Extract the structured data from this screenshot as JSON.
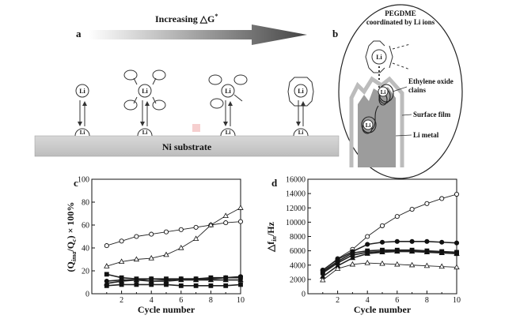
{
  "panels": {
    "a": {
      "letter": "a",
      "arrow_label": "Increasing △G",
      "arrow_sup": "*",
      "substrate": "Ni substrate",
      "ion": "Li",
      "ion_plus": "+"
    },
    "b": {
      "letter": "b",
      "note_line1": "PEGDME",
      "note_line2": "coordinated by Li ions",
      "ethylene_line1": "Ethylene oxide",
      "ethylene_line2": "clains",
      "surface_film": "Surface film",
      "li_metal": "Li metal",
      "ion": "Li",
      "ion_plus": "+"
    }
  },
  "chart_data": [
    {
      "panel": "c",
      "type": "line",
      "xlabel": "Cycle number",
      "ylabel": "(Q",
      "ylabel_sub1": "ima",
      "ylabel_mid": "/Q",
      "ylabel_sub2": "c",
      "ylabel_tail": ") × 100%",
      "xlim": [
        0,
        10
      ],
      "ylim": [
        0,
        100
      ],
      "xticks": [
        "2",
        "4",
        "6",
        "8",
        "10"
      ],
      "yticks": [
        "0",
        "20",
        "40",
        "60",
        "80",
        "100"
      ],
      "series": [
        {
          "marker": "open-circle",
          "x": [
            1,
            2,
            3,
            4,
            5,
            6,
            7,
            8,
            9,
            10
          ],
          "y": [
            42,
            46,
            50,
            52,
            54,
            56,
            58,
            60,
            62,
            63
          ]
        },
        {
          "marker": "open-triangle",
          "x": [
            1,
            2,
            3,
            4,
            5,
            6,
            7,
            8,
            9,
            10
          ],
          "y": [
            24,
            28,
            30,
            31,
            34,
            40,
            48,
            60,
            68,
            75
          ]
        },
        {
          "marker": "filled-square",
          "x": [
            1,
            2,
            3,
            4,
            5,
            6,
            7,
            8,
            9,
            10
          ],
          "y": [
            17,
            14,
            13,
            13,
            13,
            13,
            13,
            14,
            14,
            14
          ]
        },
        {
          "marker": "filled-circle",
          "x": [
            1,
            2,
            3,
            4,
            5,
            6,
            7,
            8,
            9,
            10
          ],
          "y": [
            11,
            12,
            12,
            13,
            12,
            13,
            13,
            13,
            14,
            15
          ]
        },
        {
          "marker": "filled-triangle",
          "x": [
            1,
            2,
            3,
            4,
            5,
            6,
            7,
            8,
            9,
            10
          ],
          "y": [
            9,
            11,
            12,
            11,
            11,
            12,
            12,
            12,
            12,
            12
          ]
        },
        {
          "marker": "filled-square",
          "x": [
            1,
            2,
            3,
            4,
            5,
            6,
            7,
            8,
            9,
            10
          ],
          "y": [
            7,
            8,
            8,
            8,
            8,
            7,
            7,
            7,
            7,
            8
          ]
        }
      ]
    },
    {
      "panel": "d",
      "type": "line",
      "xlabel": "Cycle number",
      "ylabel": "△f",
      "ylabel_sub1": "in",
      "ylabel_tail": "/Hz",
      "xlim": [
        0,
        10
      ],
      "ylim": [
        0,
        16000
      ],
      "xticks": [
        "2",
        "4",
        "6",
        "8",
        "10"
      ],
      "yticks": [
        "0",
        "2000",
        "4000",
        "6000",
        "8000",
        "10000",
        "12000",
        "14000",
        "16000"
      ],
      "series": [
        {
          "marker": "open-circle",
          "x": [
            1,
            2,
            3,
            4,
            5,
            6,
            7,
            8,
            9,
            10
          ],
          "y": [
            3300,
            4900,
            6200,
            8000,
            9500,
            10800,
            11800,
            12600,
            13300,
            13900
          ]
        },
        {
          "marker": "filled-circle",
          "x": [
            1,
            2,
            3,
            4,
            5,
            6,
            7,
            8,
            9,
            10
          ],
          "y": [
            3300,
            4800,
            5900,
            6900,
            7200,
            7300,
            7300,
            7300,
            7200,
            7100
          ]
        },
        {
          "marker": "filled-square",
          "x": [
            1,
            2,
            3,
            4,
            5,
            6,
            7,
            8,
            9,
            10
          ],
          "y": [
            3100,
            4500,
            5700,
            6000,
            6100,
            6100,
            6100,
            6000,
            5900,
            5800
          ]
        },
        {
          "marker": "filled-square",
          "x": [
            1,
            2,
            3,
            4,
            5,
            6,
            7,
            8,
            9,
            10
          ],
          "y": [
            2900,
            4300,
            5400,
            5800,
            5900,
            6000,
            6000,
            5900,
            5800,
            5600
          ]
        },
        {
          "marker": "filled-triangle",
          "x": [
            1,
            2,
            3,
            4,
            5,
            6,
            7,
            8,
            9,
            10
          ],
          "y": [
            2400,
            3900,
            5000,
            5600,
            5800,
            5900,
            5900,
            5800,
            5700,
            5600
          ]
        },
        {
          "marker": "open-triangle",
          "x": [
            1,
            2,
            3,
            4,
            5,
            6,
            7,
            8,
            9,
            10
          ],
          "y": [
            1900,
            3500,
            4100,
            4300,
            4200,
            4100,
            4000,
            3900,
            3800,
            3700
          ]
        }
      ]
    }
  ]
}
